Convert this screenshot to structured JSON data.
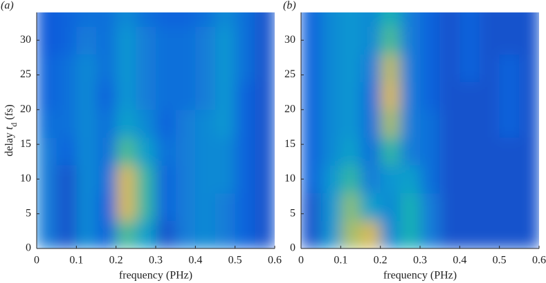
{
  "chart_data": [
    {
      "type": "heatmap",
      "panel_label": "(a)",
      "xlabel": "frequency (PHz)",
      "ylabel": [
        "delay ",
        "t",
        "d",
        " (fs)"
      ],
      "xlim": [
        0,
        0.6
      ],
      "ylim": [
        0,
        34
      ],
      "xticks": [
        0,
        0.1,
        0.2,
        0.3,
        0.4,
        0.5,
        0.6
      ],
      "yticks": [
        0,
        5,
        10,
        15,
        20,
        25,
        30
      ],
      "x": [
        0.025,
        0.075,
        0.125,
        0.175,
        0.225,
        0.275,
        0.325,
        0.375,
        0.425,
        0.475,
        0.525,
        0.575
      ],
      "y": [
        2,
        6,
        10,
        14,
        18,
        22,
        26,
        30,
        34
      ],
      "z": [
        [
          0.25,
          0.1,
          0.3,
          0.15,
          0.6,
          0.4,
          0.1,
          0.25,
          0.3,
          0.25,
          0.15,
          0.1
        ],
        [
          0.25,
          0.1,
          0.3,
          0.15,
          0.85,
          0.55,
          0.15,
          0.25,
          0.3,
          0.25,
          0.15,
          0.1
        ],
        [
          0.25,
          0.1,
          0.3,
          0.2,
          0.85,
          0.55,
          0.15,
          0.25,
          0.3,
          0.3,
          0.15,
          0.1
        ],
        [
          0.25,
          0.15,
          0.3,
          0.2,
          0.6,
          0.4,
          0.2,
          0.25,
          0.3,
          0.3,
          0.15,
          0.1
        ],
        [
          0.2,
          0.2,
          0.3,
          0.2,
          0.4,
          0.3,
          0.15,
          0.25,
          0.3,
          0.35,
          0.15,
          0.1
        ],
        [
          0.15,
          0.2,
          0.3,
          0.15,
          0.35,
          0.25,
          0.2,
          0.2,
          0.25,
          0.35,
          0.15,
          0.1
        ],
        [
          0.15,
          0.2,
          0.3,
          0.2,
          0.35,
          0.25,
          0.2,
          0.2,
          0.25,
          0.35,
          0.2,
          0.1
        ],
        [
          0.12,
          0.15,
          0.25,
          0.2,
          0.35,
          0.25,
          0.2,
          0.2,
          0.25,
          0.35,
          0.2,
          0.1
        ],
        [
          0.12,
          0.15,
          0.2,
          0.2,
          0.3,
          0.2,
          0.15,
          0.15,
          0.2,
          0.3,
          0.2,
          0.1
        ]
      ]
    },
    {
      "type": "heatmap",
      "panel_label": "(b)",
      "xlabel": "frequency (PHz)",
      "xlim": [
        0,
        0.6
      ],
      "ylim": [
        0,
        34
      ],
      "xticks": [
        0,
        0.1,
        0.2,
        0.3,
        0.4,
        0.5,
        0.6
      ],
      "yticks": [
        0,
        5,
        10,
        15,
        20,
        25,
        30
      ],
      "x": [
        0.025,
        0.075,
        0.125,
        0.175,
        0.225,
        0.275,
        0.325,
        0.375,
        0.425,
        0.475,
        0.525,
        0.575
      ],
      "y": [
        2,
        6,
        10,
        14,
        18,
        22,
        26,
        30,
        34
      ],
      "z": [
        [
          0.1,
          0.35,
          0.75,
          0.85,
          0.3,
          0.5,
          0.25,
          0.1,
          0.1,
          0.1,
          0.1,
          0.1
        ],
        [
          0.1,
          0.35,
          0.7,
          0.4,
          0.3,
          0.5,
          0.25,
          0.1,
          0.1,
          0.1,
          0.1,
          0.1
        ],
        [
          0.15,
          0.35,
          0.55,
          0.25,
          0.35,
          0.4,
          0.2,
          0.1,
          0.1,
          0.1,
          0.1,
          0.1
        ],
        [
          0.15,
          0.3,
          0.4,
          0.2,
          0.55,
          0.25,
          0.2,
          0.1,
          0.1,
          0.1,
          0.1,
          0.1
        ],
        [
          0.15,
          0.3,
          0.35,
          0.2,
          0.75,
          0.25,
          0.2,
          0.1,
          0.1,
          0.1,
          0.15,
          0.1
        ],
        [
          0.15,
          0.3,
          0.35,
          0.2,
          0.85,
          0.25,
          0.15,
          0.1,
          0.1,
          0.1,
          0.15,
          0.1
        ],
        [
          0.15,
          0.3,
          0.35,
          0.25,
          0.8,
          0.25,
          0.15,
          0.1,
          0.15,
          0.1,
          0.15,
          0.1
        ],
        [
          0.15,
          0.3,
          0.35,
          0.3,
          0.6,
          0.25,
          0.15,
          0.1,
          0.15,
          0.1,
          0.1,
          0.1
        ],
        [
          0.15,
          0.3,
          0.35,
          0.3,
          0.5,
          0.25,
          0.15,
          0.1,
          0.15,
          0.1,
          0.1,
          0.1
        ]
      ]
    }
  ]
}
